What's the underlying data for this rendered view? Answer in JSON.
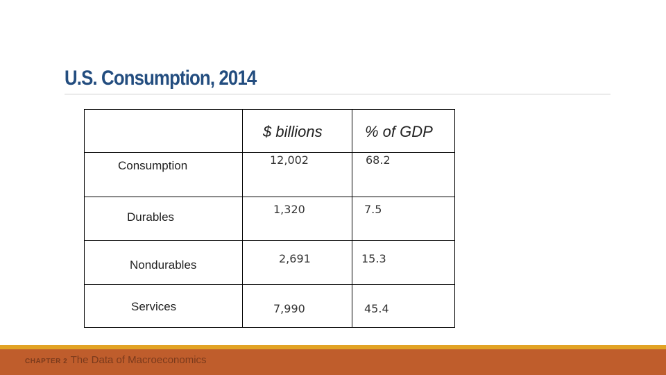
{
  "slide": {
    "title": "U.S. Consumption, 2014"
  },
  "table": {
    "headers": [
      "",
      "$ billions",
      "% of GDP"
    ],
    "rows": [
      {
        "label": "Consumption",
        "billions": "12,002",
        "pct_gdp": "68.2"
      },
      {
        "label": "Durables",
        "billions": "1,320",
        "pct_gdp": "7.5"
      },
      {
        "label": "Nondurables",
        "billions": "2,691",
        "pct_gdp": "15.3"
      },
      {
        "label": "Services",
        "billions": "7,990",
        "pct_gdp": "45.4"
      }
    ]
  },
  "footer": {
    "chapter": "CHAPTER 2",
    "chapter_title": "The Data of Macroeconomics"
  },
  "colors": {
    "title": "#234d7f",
    "footer_bar": "#bf5d2c",
    "footer_stripe": "#e2a324",
    "footer_text": "#7a3a1c"
  }
}
